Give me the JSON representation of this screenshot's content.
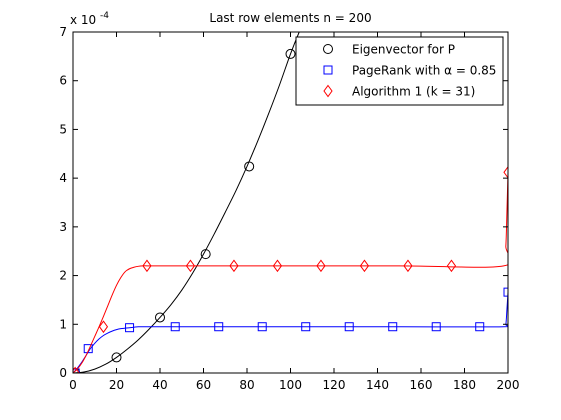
{
  "chart_data": {
    "type": "line",
    "title": "Last row elements n = 200",
    "xlabel": "",
    "ylabel": "",
    "y_exponent_label": "x 10",
    "y_exponent_power": "-4",
    "xlim": [
      0,
      200
    ],
    "ylim": [
      0,
      7
    ],
    "x_ticks": [
      0,
      20,
      40,
      60,
      80,
      100,
      120,
      140,
      160,
      180,
      200
    ],
    "y_ticks": [
      0,
      1,
      2,
      3,
      4,
      5,
      6,
      7
    ],
    "x_tick_labels": [
      "0",
      "20",
      "40",
      "60",
      "80",
      "100",
      "120",
      "140",
      "160",
      "180",
      "200"
    ],
    "y_tick_labels": [
      "0",
      "1",
      "2",
      "3",
      "4",
      "5",
      "6",
      "7"
    ],
    "grid": false,
    "legend_position": "top-right",
    "series": [
      {
        "name": "Eigenvector for P",
        "color": "#000000",
        "marker": "circle",
        "line": {
          "x": [
            0,
            5,
            10,
            15,
            20,
            25,
            30,
            35,
            40,
            45,
            50,
            55,
            60,
            65,
            70,
            75,
            80,
            85,
            90,
            95,
            100,
            104,
            108
          ],
          "y": [
            0.0,
            0.02,
            0.08,
            0.18,
            0.32,
            0.49,
            0.68,
            0.9,
            1.14,
            1.4,
            1.7,
            2.05,
            2.44,
            2.86,
            3.3,
            3.75,
            4.24,
            4.77,
            5.33,
            5.92,
            6.55,
            7.0,
            7.4
          ]
        },
        "markers": {
          "x": [
            1,
            20,
            40,
            61,
            81,
            100
          ],
          "y": [
            0.0,
            0.32,
            1.14,
            2.44,
            4.24,
            6.55
          ]
        }
      },
      {
        "name": "PageRank with α = 0.85",
        "color": "#0000ff",
        "marker": "square",
        "line": {
          "x": [
            0,
            2,
            4,
            6,
            8,
            10,
            12,
            14,
            16,
            18,
            20,
            22,
            24,
            26,
            28,
            30,
            32,
            36,
            40,
            50,
            100,
            150,
            198,
            199,
            199.5,
            200
          ],
          "y": [
            0.0,
            0.1,
            0.22,
            0.36,
            0.5,
            0.61,
            0.7,
            0.77,
            0.82,
            0.86,
            0.89,
            0.91,
            0.92,
            0.93,
            0.94,
            0.95,
            0.95,
            0.95,
            0.95,
            0.95,
            0.95,
            0.95,
            0.95,
            1.0,
            1.3,
            1.66
          ]
        },
        "markers": {
          "x": [
            1,
            7,
            26,
            47,
            67,
            87,
            107,
            127,
            147,
            167,
            187,
            200
          ],
          "y": [
            0.0,
            0.5,
            0.93,
            0.95,
            0.95,
            0.95,
            0.95,
            0.95,
            0.95,
            0.95,
            0.95,
            1.66
          ]
        }
      },
      {
        "name": "Algorithm 1 (k = 31)",
        "color": "#ff0000",
        "marker": "diamond",
        "line": {
          "x": [
            0,
            2,
            4,
            6,
            8,
            10,
            12,
            14,
            16,
            18,
            20,
            22,
            24,
            26,
            28,
            30,
            32,
            34,
            40,
            60,
            100,
            150,
            198,
            199,
            199.5,
            200
          ],
          "y": [
            0.0,
            0.08,
            0.2,
            0.36,
            0.55,
            0.75,
            0.95,
            1.16,
            1.38,
            1.6,
            1.8,
            1.96,
            2.08,
            2.14,
            2.17,
            2.19,
            2.2,
            2.2,
            2.2,
            2.2,
            2.2,
            2.2,
            2.2,
            2.6,
            3.3,
            4.12
          ]
        },
        "markers": {
          "x": [
            1,
            14,
            34,
            54,
            74,
            94,
            114,
            134,
            154,
            174,
            200
          ],
          "y": [
            0.0,
            0.95,
            2.2,
            2.2,
            2.2,
            2.2,
            2.2,
            2.2,
            2.2,
            2.2,
            4.12
          ]
        }
      }
    ]
  }
}
